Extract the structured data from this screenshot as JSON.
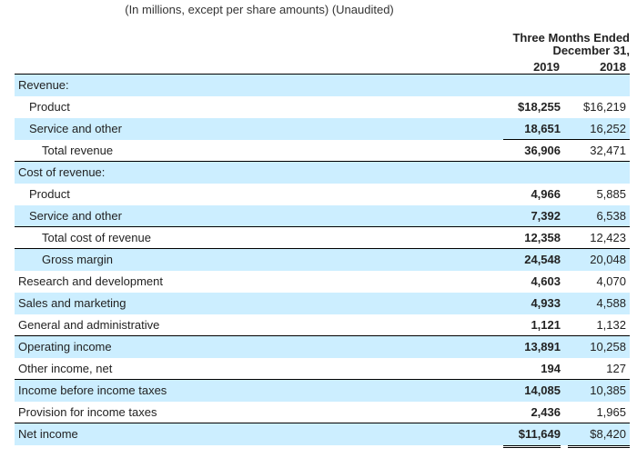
{
  "subtitle": "(In millions, except per share amounts) (Unaudited)",
  "period": {
    "line1": "Three Months Ended",
    "line2": "December 31,",
    "years": [
      "2019",
      "2018"
    ]
  },
  "rows": [
    {
      "label": "Revenue:",
      "v2019": "",
      "v2018": ""
    },
    {
      "label": "Product",
      "v2019": "$18,255",
      "v2018": "$16,219"
    },
    {
      "label": "Service and other",
      "v2019": "18,651",
      "v2018": "16,252"
    },
    {
      "label": "Total revenue",
      "v2019": "36,906",
      "v2018": "32,471"
    },
    {
      "label": "Cost of revenue:",
      "v2019": "",
      "v2018": ""
    },
    {
      "label": "Product",
      "v2019": "4,966",
      "v2018": "5,885"
    },
    {
      "label": "Service and other",
      "v2019": "7,392",
      "v2018": "6,538"
    },
    {
      "label": "Total cost of revenue",
      "v2019": "12,358",
      "v2018": "12,423"
    },
    {
      "label": "Gross margin",
      "v2019": "24,548",
      "v2018": "20,048"
    },
    {
      "label": "Research and development",
      "v2019": "4,603",
      "v2018": "4,070"
    },
    {
      "label": "Sales and marketing",
      "v2019": "4,933",
      "v2018": "4,588"
    },
    {
      "label": "General and administrative",
      "v2019": "1,121",
      "v2018": "1,132"
    },
    {
      "label": "Operating income",
      "v2019": "13,891",
      "v2018": "10,258"
    },
    {
      "label": "Other income, net",
      "v2019": "194",
      "v2018": "127"
    },
    {
      "label": "Income before income taxes",
      "v2019": "14,085",
      "v2018": "10,385"
    },
    {
      "label": "Provision for income taxes",
      "v2019": "2,436",
      "v2018": "1,965"
    },
    {
      "label": "Net income",
      "v2019": "$11,649",
      "v2018": "$8,420"
    }
  ],
  "colors": {
    "shade": "#cceeff",
    "rule": "#000000"
  }
}
